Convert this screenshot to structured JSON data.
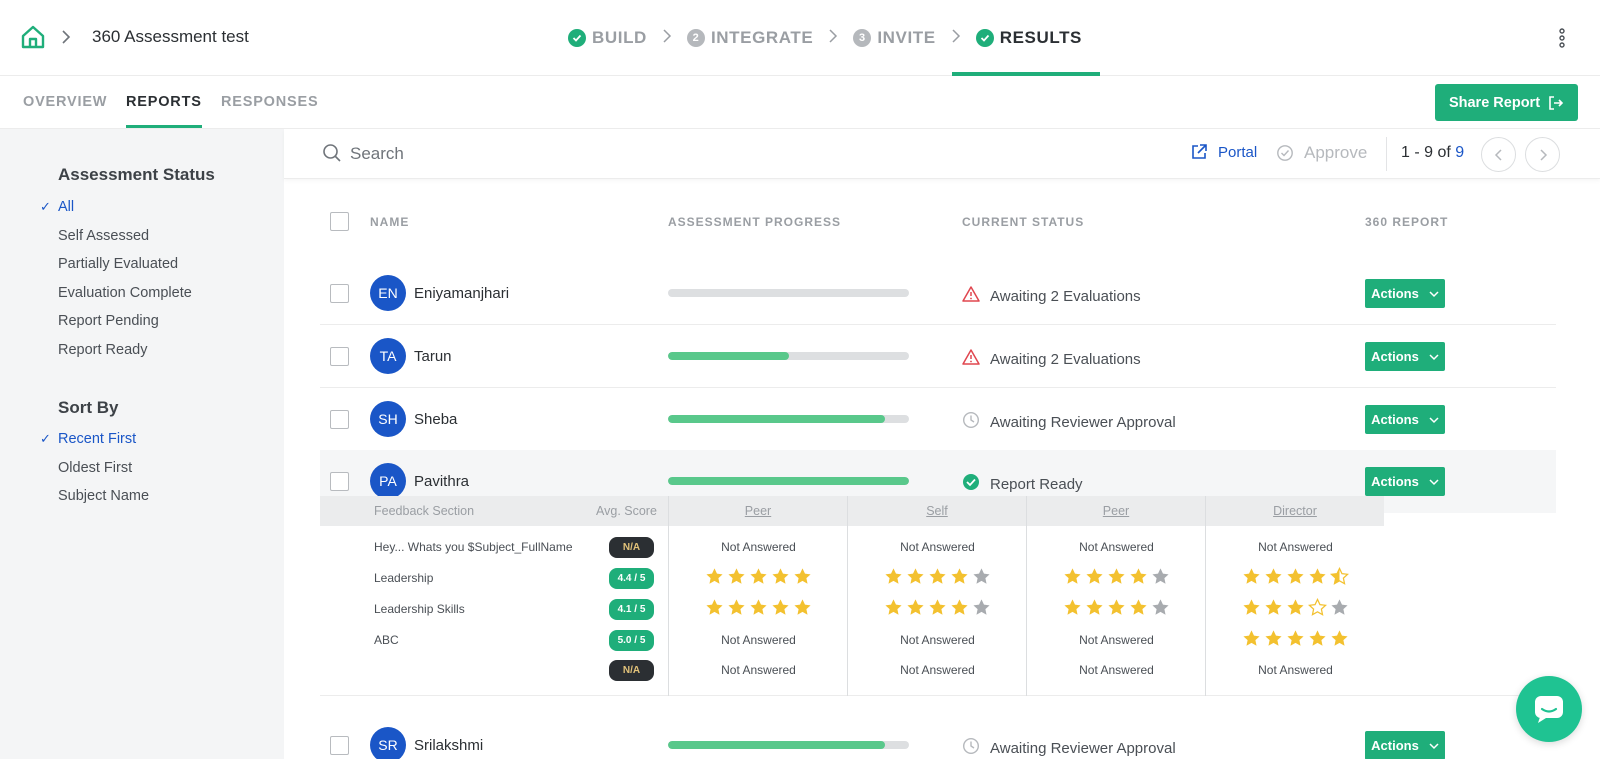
{
  "header": {
    "title": "360 Assessment test",
    "steps": [
      {
        "label": "BUILD",
        "badge": "",
        "state": "done"
      },
      {
        "label": "INTEGRATE",
        "badge": "2",
        "state": "pending"
      },
      {
        "label": "INVITE",
        "badge": "3",
        "state": "pending"
      },
      {
        "label": "RESULTS",
        "badge": "",
        "state": "active"
      }
    ]
  },
  "subnav": {
    "tabs": [
      "OVERVIEW",
      "REPORTS",
      "RESPONSES"
    ],
    "active": "REPORTS",
    "share_label": "Share Report"
  },
  "sidebar": {
    "status_heading": "Assessment Status",
    "status_items": [
      "All",
      "Self Assessed",
      "Partially Evaluated",
      "Evaluation Complete",
      "Report Pending",
      "Report Ready"
    ],
    "status_selected": "All",
    "sort_heading": "Sort By",
    "sort_items": [
      "Recent First",
      "Oldest First",
      "Subject Name"
    ],
    "sort_selected": "Recent First",
    "check_glyph": "✓"
  },
  "toolbar": {
    "search_placeholder": "Search",
    "portal_label": "Portal",
    "approve_label": "Approve",
    "pager_range": "1 - 9 of",
    "pager_total": "9"
  },
  "table": {
    "columns": {
      "name": "NAME",
      "progress": "ASSESSMENT PROGRESS",
      "status": "CURRENT STATUS",
      "report": "360 REPORT"
    },
    "actions_label": "Actions",
    "rows": [
      {
        "initials": "EN",
        "name": "Eniyamanjhari",
        "progress": 0,
        "status": "Awaiting 2 Evaluations",
        "status_icon": "warning-icon"
      },
      {
        "initials": "TA",
        "name": "Tarun",
        "progress": 0.5,
        "status": "Awaiting 2 Evaluations",
        "status_icon": "warning-icon"
      },
      {
        "initials": "SH",
        "name": "Sheba",
        "progress": 0.9,
        "status": "Awaiting Reviewer Approval",
        "status_icon": "clock-icon"
      },
      {
        "initials": "PA",
        "name": "Pavithra",
        "progress": 1,
        "status": "Report Ready",
        "status_icon": "check-circle-icon"
      },
      {
        "initials": "SR",
        "name": "Srilakshmi",
        "progress": 0.9,
        "status": "Awaiting Reviewer Approval",
        "status_icon": "clock-icon"
      }
    ]
  },
  "detail": {
    "section_header": "Feedback Section",
    "score_header": "Avg. Score",
    "reviewers": [
      "Peer",
      "Self",
      "Peer",
      "Director"
    ],
    "not_answered": "Not Answered",
    "sections": [
      {
        "label": "Hey... Whats you $Subject_FullName",
        "score": "N/A",
        "ratings": [
          null,
          null,
          null,
          null
        ]
      },
      {
        "label": "Leadership",
        "score": "4.4 / 5",
        "ratings": [
          5,
          4,
          4,
          4.5
        ]
      },
      {
        "label": "Leadership Skills",
        "score": "4.1 / 5",
        "ratings": [
          5,
          4,
          4,
          3
        ]
      },
      {
        "label": "ABC",
        "score": "5.0 / 5",
        "ratings": [
          null,
          null,
          null,
          5
        ]
      },
      {
        "label": "",
        "score": "N/A",
        "ratings": [
          null,
          null,
          null,
          null
        ]
      }
    ]
  },
  "colors": {
    "accent_green": "#1fae7a",
    "progress_green": "#59c88b",
    "link_blue": "#1a56c7",
    "star_gold": "#f3c12f",
    "star_empty": "#a8abaf",
    "warning_red": "#e0464f"
  }
}
